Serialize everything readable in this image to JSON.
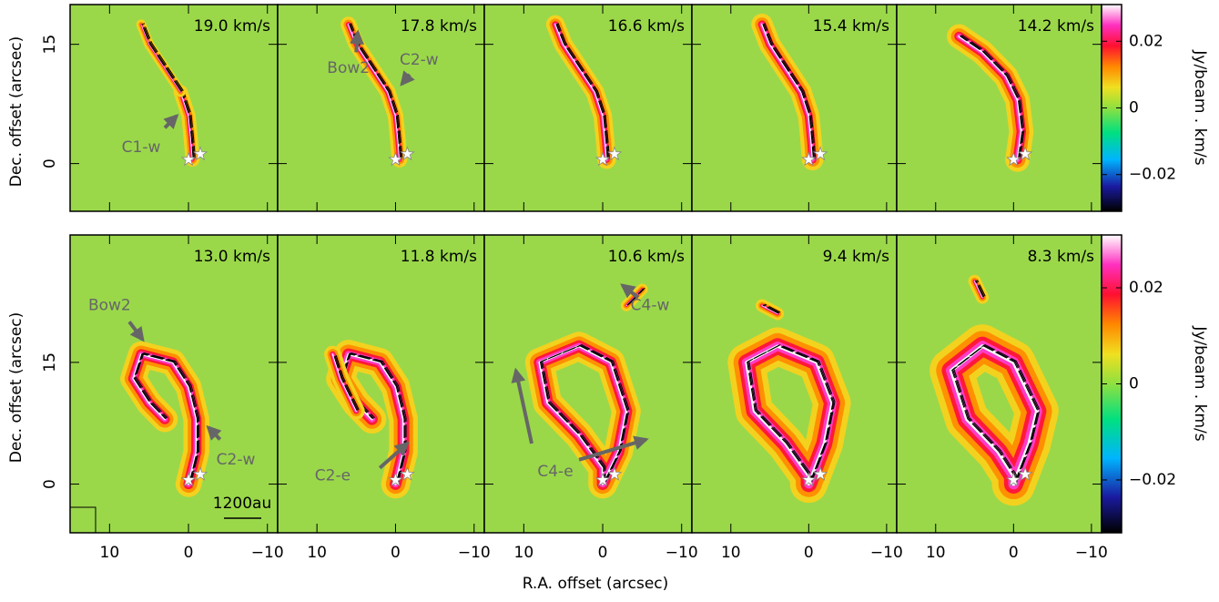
{
  "chart_data": {
    "type": "channel-maps",
    "xlabel": "R.A. offset (arcsec)",
    "ylabel": "Dec. offset (arcsec)",
    "colorbar_label": "Jy/beam . km/s",
    "xlim": [
      15,
      -11.3
    ],
    "xticks": [
      10,
      0,
      {
        "value": -10,
        "label": "−10"
      }
    ],
    "clim": [
      -0.031,
      0.031
    ],
    "cticks": [
      {
        "value": -0.02,
        "label": "−0.02"
      },
      0,
      0.02
    ],
    "scalebar": "1200au",
    "rows": [
      {
        "ylim": [
          -6,
          20
        ],
        "yticks": [
          0,
          15
        ],
        "panels": [
          {
            "label": "19.0 km/s",
            "annotations": [
              "C1-w"
            ]
          },
          {
            "label": "17.8 km/s",
            "annotations": [
              "Bow2",
              "C2-w"
            ]
          },
          {
            "label": "16.6 km/s",
            "annotations": []
          },
          {
            "label": "15.4 km/s",
            "annotations": []
          },
          {
            "label": "14.2 km/s",
            "annotations": []
          }
        ]
      },
      {
        "ylim": [
          -6,
          30.7
        ],
        "yticks": [
          0,
          15
        ],
        "panels": [
          {
            "label": "13.0 km/s",
            "annotations": [
              "Bow2",
              "C2-w"
            ]
          },
          {
            "label": "11.8 km/s",
            "annotations": [
              "C2-e"
            ]
          },
          {
            "label": "10.6 km/s",
            "annotations": [
              "C4-w",
              "C4-e"
            ]
          },
          {
            "label": "9.4 km/s",
            "annotations": []
          },
          {
            "label": "8.3 km/s",
            "annotations": []
          }
        ]
      }
    ]
  }
}
